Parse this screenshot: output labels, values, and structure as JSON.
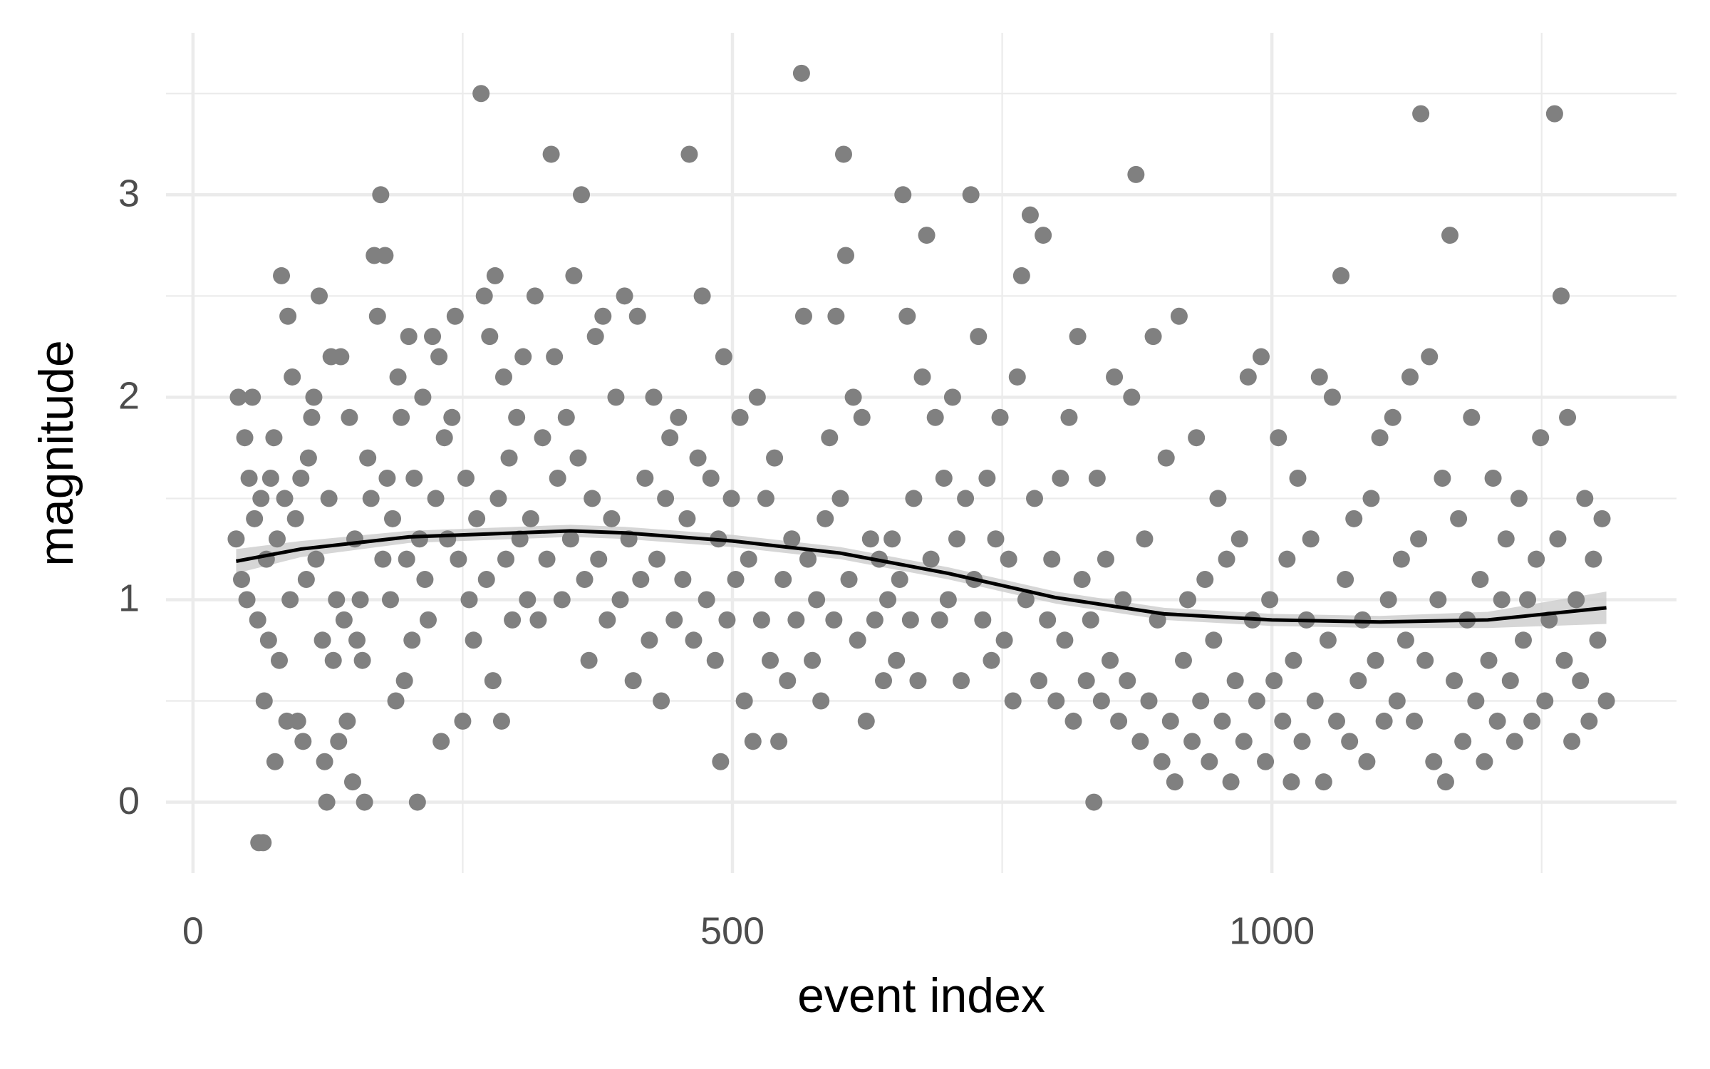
{
  "chart_data": {
    "type": "scatter",
    "xlabel": "event index",
    "ylabel": "magnitude",
    "x": [
      40,
      42,
      45,
      48,
      50,
      52,
      55,
      57,
      60,
      61,
      63,
      65,
      66,
      68,
      70,
      72,
      75,
      76,
      78,
      80,
      82,
      85,
      87,
      88,
      90,
      92,
      95,
      97,
      100,
      102,
      105,
      107,
      110,
      112,
      114,
      117,
      120,
      122,
      124,
      126,
      128,
      130,
      133,
      135,
      137,
      140,
      143,
      145,
      148,
      150,
      152,
      155,
      157,
      159,
      162,
      165,
      168,
      171,
      174,
      176,
      178,
      180,
      183,
      185,
      188,
      190,
      193,
      196,
      198,
      200,
      203,
      205,
      208,
      210,
      213,
      215,
      218,
      222,
      225,
      228,
      230,
      233,
      236,
      240,
      243,
      246,
      250,
      253,
      256,
      260,
      263,
      267,
      270,
      272,
      275,
      278,
      280,
      283,
      286,
      288,
      290,
      293,
      296,
      300,
      303,
      306,
      310,
      313,
      317,
      320,
      324,
      328,
      332,
      335,
      338,
      342,
      346,
      350,
      353,
      357,
      360,
      363,
      367,
      370,
      373,
      376,
      380,
      384,
      388,
      392,
      396,
      400,
      404,
      408,
      412,
      415,
      419,
      423,
      427,
      430,
      434,
      438,
      442,
      446,
      450,
      454,
      458,
      460,
      464,
      468,
      472,
      476,
      480,
      484,
      487,
      489,
      492,
      495,
      499,
      503,
      507,
      511,
      515,
      519,
      523,
      527,
      531,
      535,
      539,
      543,
      547,
      551,
      555,
      559,
      564,
      566,
      570,
      574,
      578,
      582,
      586,
      590,
      594,
      596,
      600,
      603,
      605,
      608,
      612,
      616,
      620,
      624,
      628,
      632,
      636,
      640,
      644,
      648,
      652,
      655,
      658,
      662,
      665,
      668,
      672,
      676,
      680,
      684,
      688,
      692,
      696,
      700,
      704,
      708,
      712,
      716,
      721,
      724,
      728,
      732,
      736,
      740,
      744,
      748,
      752,
      756,
      760,
      764,
      768,
      772,
      776,
      780,
      784,
      788,
      792,
      796,
      800,
      804,
      808,
      812,
      816,
      820,
      824,
      828,
      832,
      835,
      838,
      842,
      846,
      850,
      854,
      858,
      862,
      866,
      870,
      874,
      878,
      882,
      886,
      890,
      894,
      898,
      902,
      906,
      910,
      914,
      918,
      922,
      926,
      930,
      934,
      938,
      942,
      946,
      950,
      954,
      958,
      962,
      966,
      970,
      974,
      978,
      982,
      986,
      990,
      994,
      998,
      1002,
      1006,
      1010,
      1014,
      1018,
      1020,
      1024,
      1028,
      1032,
      1036,
      1040,
      1044,
      1048,
      1052,
      1056,
      1060,
      1064,
      1068,
      1072,
      1076,
      1080,
      1084,
      1088,
      1092,
      1096,
      1100,
      1104,
      1108,
      1112,
      1116,
      1120,
      1124,
      1128,
      1132,
      1136,
      1138,
      1142,
      1146,
      1150,
      1154,
      1158,
      1161,
      1165,
      1169,
      1173,
      1177,
      1181,
      1185,
      1189,
      1193,
      1197,
      1201,
      1205,
      1209,
      1213,
      1217,
      1221,
      1225,
      1229,
      1233,
      1237,
      1241,
      1245,
      1249,
      1253,
      1257,
      1262,
      1265,
      1268,
      1271,
      1274,
      1278,
      1282,
      1286,
      1290,
      1294,
      1298,
      1302,
      1306,
      1310
    ],
    "values": [
      1.3,
      2.0,
      1.1,
      1.8,
      1.0,
      1.6,
      2.0,
      1.4,
      0.9,
      -0.2,
      1.5,
      -0.2,
      0.5,
      1.2,
      0.8,
      1.6,
      1.8,
      0.2,
      1.3,
      0.7,
      2.6,
      1.5,
      0.4,
      2.4,
      1.0,
      2.1,
      1.4,
      0.4,
      1.6,
      0.3,
      1.1,
      1.7,
      1.9,
      2.0,
      1.2,
      2.5,
      0.8,
      0.2,
      0.0,
      1.5,
      2.2,
      0.7,
      1.0,
      0.3,
      2.2,
      0.9,
      0.4,
      1.9,
      0.1,
      1.3,
      0.8,
      1.0,
      0.7,
      0.0,
      1.7,
      1.5,
      2.7,
      2.4,
      3.0,
      1.2,
      2.7,
      1.6,
      1.0,
      1.4,
      0.5,
      2.1,
      1.9,
      0.6,
      1.2,
      2.3,
      0.8,
      1.6,
      0.0,
      1.3,
      2.0,
      1.1,
      0.9,
      2.3,
      1.5,
      2.2,
      0.3,
      1.8,
      1.3,
      1.9,
      2.4,
      1.2,
      0.4,
      1.6,
      1.0,
      0.8,
      1.4,
      3.5,
      2.5,
      1.1,
      2.3,
      0.6,
      2.6,
      1.5,
      0.4,
      2.1,
      1.2,
      1.7,
      0.9,
      1.9,
      1.3,
      2.2,
      1.0,
      1.4,
      2.5,
      0.9,
      1.8,
      1.2,
      3.2,
      2.2,
      1.6,
      1.0,
      1.9,
      1.3,
      2.6,
      1.7,
      3.0,
      1.1,
      0.7,
      1.5,
      2.3,
      1.2,
      2.4,
      0.9,
      1.4,
      2.0,
      1.0,
      2.5,
      1.3,
      0.6,
      2.4,
      1.1,
      1.6,
      0.8,
      2.0,
      1.2,
      0.5,
      1.5,
      1.8,
      0.9,
      1.9,
      1.1,
      1.4,
      3.2,
      0.8,
      1.7,
      2.5,
      1.0,
      1.6,
      0.7,
      1.3,
      0.2,
      2.2,
      0.9,
      1.5,
      1.1,
      1.9,
      0.5,
      1.2,
      0.3,
      2.0,
      0.9,
      1.5,
      0.7,
      1.7,
      0.3,
      1.1,
      0.6,
      1.3,
      0.9,
      3.6,
      2.4,
      1.2,
      0.7,
      1.0,
      0.5,
      1.4,
      1.8,
      0.9,
      2.4,
      1.5,
      3.2,
      2.7,
      1.1,
      2.0,
      0.8,
      1.9,
      0.4,
      1.3,
      0.9,
      1.2,
      0.6,
      1.0,
      1.3,
      0.7,
      1.1,
      3.0,
      2.4,
      0.9,
      1.5,
      0.6,
      2.1,
      2.8,
      1.2,
      1.9,
      0.9,
      1.6,
      1.0,
      2.0,
      1.3,
      0.6,
      1.5,
      3.0,
      1.1,
      2.3,
      0.9,
      1.6,
      0.7,
      1.3,
      1.9,
      0.8,
      1.2,
      0.5,
      2.1,
      2.6,
      1.0,
      2.9,
      1.5,
      0.6,
      2.8,
      0.9,
      1.2,
      0.5,
      1.6,
      0.8,
      1.9,
      0.4,
      2.3,
      1.1,
      0.6,
      0.9,
      0.0,
      1.6,
      0.5,
      1.2,
      0.7,
      2.1,
      0.4,
      1.0,
      0.6,
      2.0,
      3.1,
      0.3,
      1.3,
      0.5,
      2.3,
      0.9,
      0.2,
      1.7,
      0.4,
      0.1,
      2.4,
      0.7,
      1.0,
      0.3,
      1.8,
      0.5,
      1.1,
      0.2,
      0.8,
      1.5,
      0.4,
      1.2,
      0.1,
      0.6,
      1.3,
      0.3,
      2.1,
      0.9,
      0.5,
      2.2,
      0.2,
      1.0,
      0.6,
      1.8,
      0.4,
      1.2,
      0.1,
      0.7,
      1.6,
      0.3,
      0.9,
      1.3,
      0.5,
      2.1,
      0.1,
      0.8,
      2.0,
      0.4,
      2.6,
      1.1,
      0.3,
      1.4,
      0.6,
      0.9,
      0.2,
      1.5,
      0.7,
      1.8,
      0.4,
      1.0,
      1.9,
      0.5,
      1.2,
      0.8,
      2.1,
      0.4,
      1.3,
      3.4,
      0.7,
      2.2,
      0.2,
      1.0,
      1.6,
      0.1,
      2.8,
      0.6,
      1.4,
      0.3,
      0.9,
      1.9,
      0.5,
      1.1,
      0.2,
      0.7,
      1.6,
      0.4,
      1.0,
      1.3,
      0.6,
      0.3,
      1.5,
      0.8,
      1.0,
      0.4,
      1.2,
      1.8,
      0.5,
      0.9,
      3.4,
      1.3,
      2.5,
      0.7,
      1.9,
      0.3,
      1.0,
      0.6,
      1.5,
      0.4,
      1.2,
      0.8,
      1.4,
      0.5
    ],
    "color": "#808080",
    "xlim": [
      -25,
      1375
    ],
    "ylim": [
      -0.35,
      3.8
    ],
    "xticks": [
      0,
      500,
      1000
    ],
    "yticks": [
      0,
      1,
      2,
      3
    ],
    "xminor": [
      250,
      750,
      1250
    ],
    "yminor": [
      0.5,
      1.5,
      2.5,
      3.5
    ],
    "grid": true,
    "smooth": {
      "type": "line",
      "x": [
        40,
        100,
        200,
        300,
        350,
        400,
        500,
        600,
        700,
        800,
        900,
        1000,
        1100,
        1200,
        1310
      ],
      "values": [
        1.19,
        1.25,
        1.31,
        1.33,
        1.34,
        1.33,
        1.29,
        1.23,
        1.13,
        1.01,
        0.93,
        0.9,
        0.89,
        0.9,
        0.96
      ],
      "lower": [
        1.13,
        1.21,
        1.28,
        1.3,
        1.31,
        1.3,
        1.26,
        1.2,
        1.1,
        0.98,
        0.9,
        0.87,
        0.86,
        0.86,
        0.88
      ],
      "upper": [
        1.25,
        1.29,
        1.34,
        1.36,
        1.37,
        1.36,
        1.32,
        1.26,
        1.16,
        1.04,
        0.96,
        0.93,
        0.92,
        0.94,
        1.04
      ],
      "color": "#000000",
      "band_color": "#cccccc"
    }
  }
}
